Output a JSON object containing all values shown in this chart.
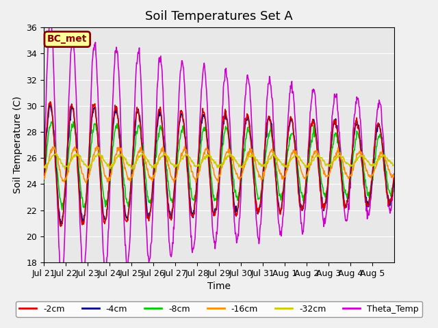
{
  "title": "Soil Temperatures Set A",
  "xlabel": "Time",
  "ylabel": "Soil Temperature (C)",
  "ylim": [
    18,
    36
  ],
  "xtick_labels": [
    "Jul 21",
    "Jul 22",
    "Jul 23",
    "Jul 24",
    "Jul 25",
    "Jul 26",
    "Jul 27",
    "Jul 28",
    "Jul 29",
    "Jul 30",
    "Jul 31",
    "Aug 1",
    "Aug 2",
    "Aug 3",
    "Aug 4",
    "Aug 5"
  ],
  "line_colors": {
    "-2cm": "#dd0000",
    "-4cm": "#00008b",
    "-8cm": "#00cc00",
    "-16cm": "#ff8c00",
    "-32cm": "#cccc00",
    "Theta_Temp": "#cc00cc"
  },
  "line_widths": {
    "-2cm": 1.2,
    "-4cm": 1.2,
    "-8cm": 1.2,
    "-16cm": 1.2,
    "-32cm": 1.2,
    "Theta_Temp": 1.2
  },
  "background_color": "#e8e8e8",
  "figure_background": "#f0f0f0",
  "bc_met_label": "BC_met",
  "bc_met_bg": "#ffff99",
  "bc_met_border": "#8b0000",
  "title_fontsize": 13,
  "axis_label_fontsize": 10,
  "tick_fontsize": 9,
  "legend_fontsize": 9
}
